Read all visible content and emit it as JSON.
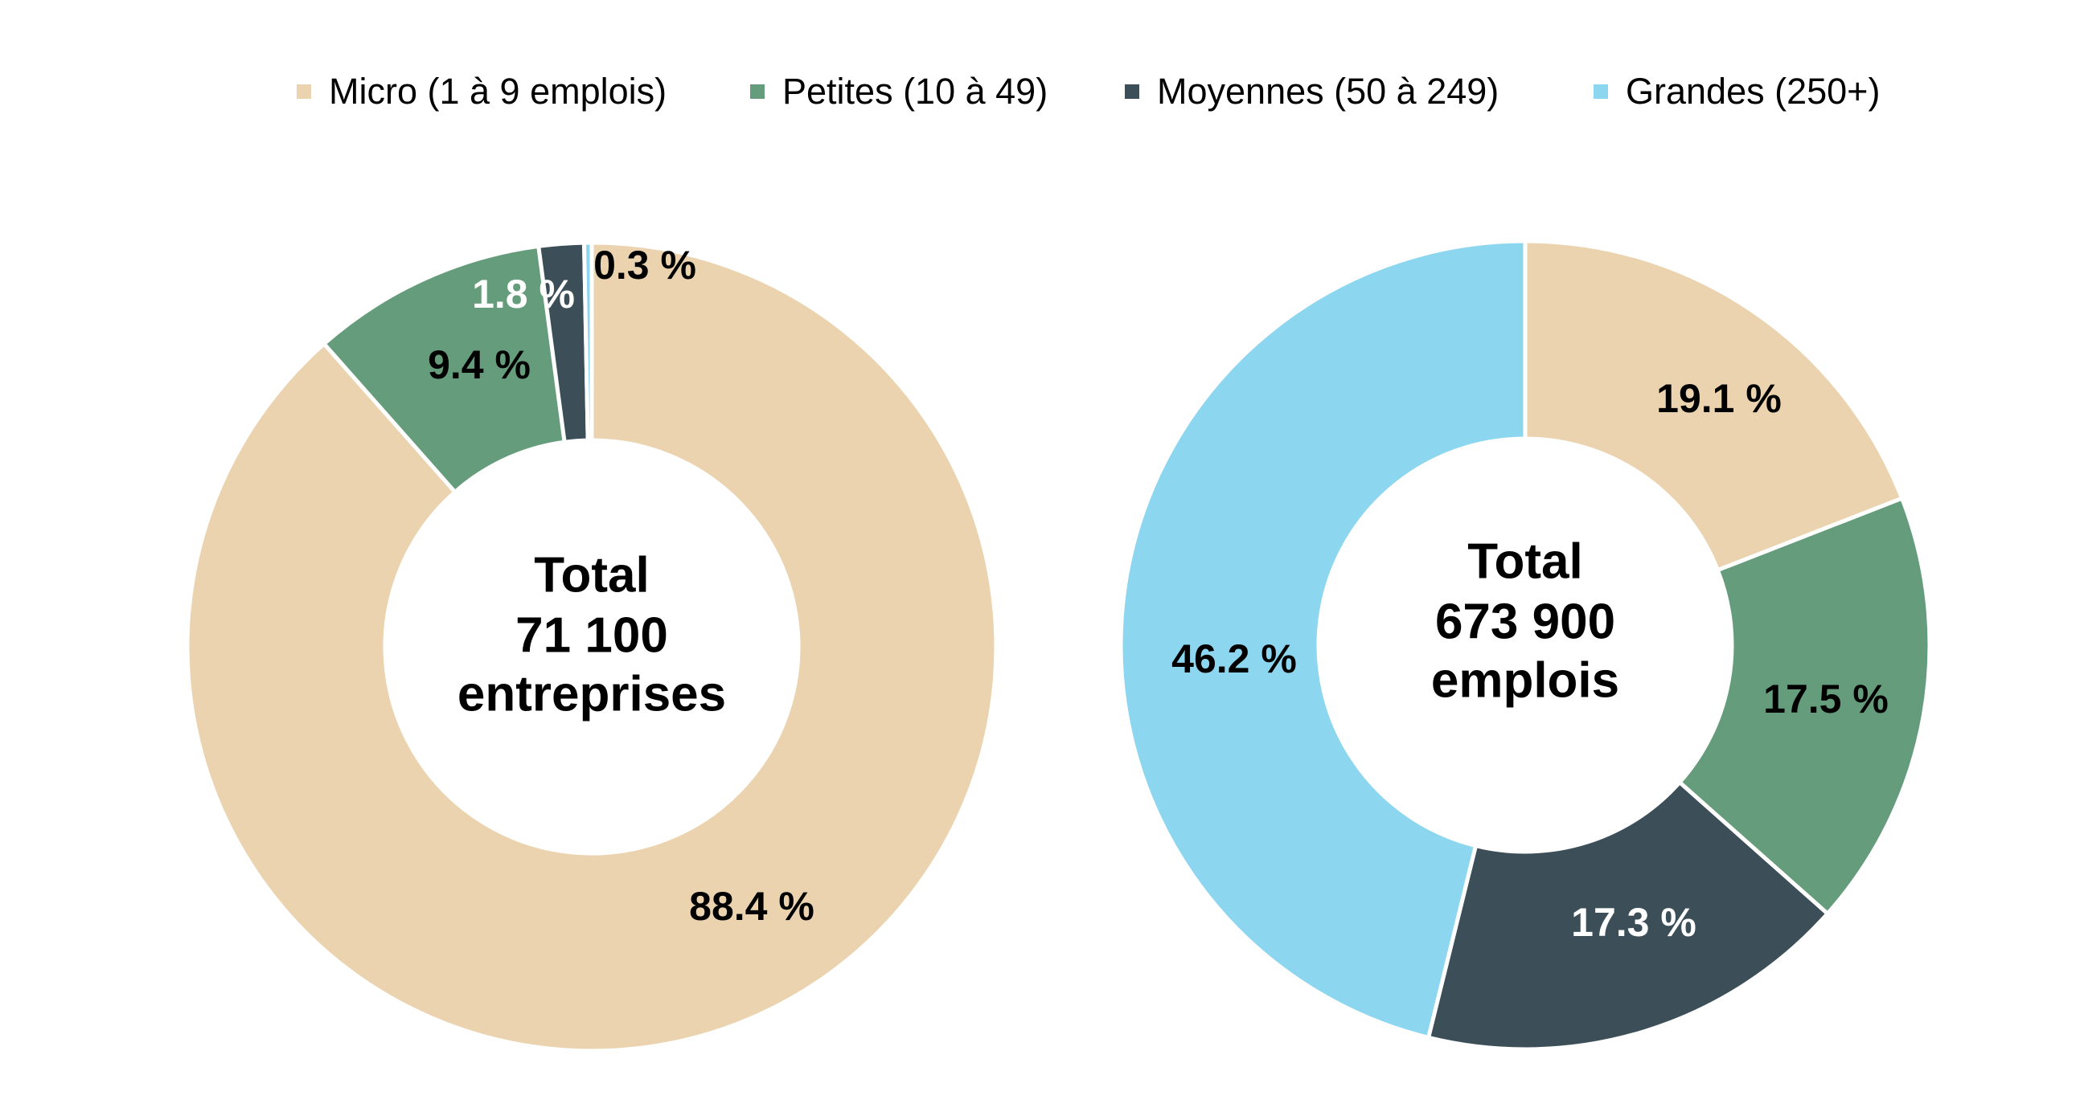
{
  "chart_data": [
    {
      "type": "pie",
      "subtype": "donut",
      "categories": [
        "Micro (1 à 9 emplois)",
        "Petites (10 à 49)",
        "Moyennes (50 à 249)",
        "Grandes (250+)"
      ],
      "values": [
        88.4,
        9.4,
        1.8,
        0.3
      ],
      "labels": [
        "88.4 %",
        "9.4 %",
        "1.8 %",
        "0.3 %"
      ],
      "center_text": [
        "Total",
        "71 100",
        "entreprises"
      ]
    },
    {
      "type": "pie",
      "subtype": "donut",
      "categories": [
        "Micro (1 à 9 emplois)",
        "Petites (10 à 49)",
        "Moyennes (50 à 249)",
        "Grandes (250+)"
      ],
      "values": [
        19.1,
        17.5,
        17.3,
        46.2
      ],
      "labels": [
        "19.1 %",
        "17.5 %",
        "17.3 %",
        "46.2 %"
      ],
      "center_text": [
        "Total",
        "673 900",
        "emplois"
      ]
    }
  ],
  "legend": {
    "placement": "top",
    "items": [
      {
        "label": "Micro (1 à 9 emplois)",
        "color": "#EAD3AE"
      },
      {
        "label": "Petites (10 à 49)",
        "color": "#659C7B"
      },
      {
        "label": "Moyennes (50 à 249)",
        "color": "#3C4F58"
      },
      {
        "label": "Grandes (250+)",
        "color": "#8DD6EF"
      }
    ]
  },
  "label_colors": [
    "#000000",
    "#000000",
    "#FFFFFF",
    "#000000"
  ]
}
